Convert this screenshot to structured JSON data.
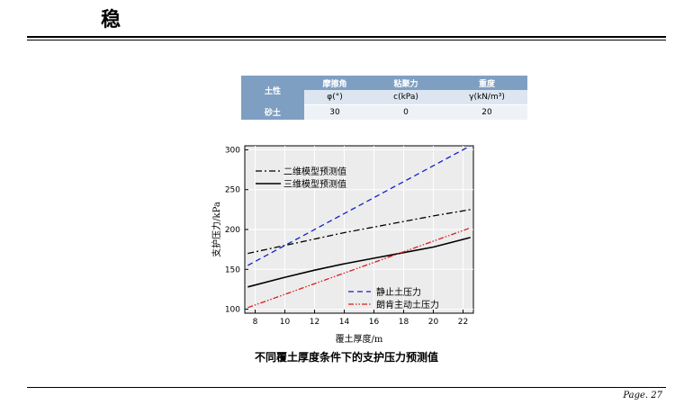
{
  "page": {
    "title": "稳",
    "caption": "不同覆土厚度条件下的支护压力预测值",
    "page_number": "Page. 27"
  },
  "soil_table": {
    "col_soil_header": "土性",
    "headers": [
      "摩擦角",
      "粘聚力",
      "重度"
    ],
    "units": [
      "φ(°)",
      "c(kPa)",
      "γ(kN/m³)"
    ],
    "row_label": "砂土",
    "values": [
      "30",
      "0",
      "20"
    ]
  },
  "chart_data": {
    "type": "line",
    "xlabel": "覆土厚度/m",
    "ylabel": "支护压力/kPa",
    "xlim": [
      7.3,
      22.7
    ],
    "ylim": [
      95,
      305
    ],
    "xticks": [
      8,
      10,
      12,
      14,
      16,
      18,
      20,
      22
    ],
    "yticks": [
      100,
      150,
      200,
      250,
      300
    ],
    "grid": true,
    "legend_top": [
      "二维模型预测值",
      "三维模型预测值"
    ],
    "legend_bottom": [
      "静止土压力",
      "朗肯主动土压力"
    ],
    "series": [
      {
        "name": "二维模型预测值",
        "style": "dashdot",
        "color": "#000000",
        "x": [
          7.5,
          10,
          12,
          14,
          16,
          18,
          20,
          22.5
        ],
        "y": [
          170,
          180,
          188,
          196,
          203,
          210,
          217,
          225
        ]
      },
      {
        "name": "三维模型预测值",
        "style": "solid",
        "color": "#000000",
        "x": [
          7.5,
          10,
          12,
          14,
          16,
          18,
          20,
          22.5
        ],
        "y": [
          128,
          140,
          149,
          157,
          164,
          171,
          178,
          190
        ]
      },
      {
        "name": "静止土压力",
        "style": "dash",
        "color": "#1020c8",
        "x": [
          7.5,
          22.5
        ],
        "y": [
          155,
          305
        ]
      },
      {
        "name": "朗肯主动土压力",
        "style": "dashdotdot",
        "color": "#d81c1c",
        "x": [
          7.5,
          22.5
        ],
        "y": [
          102,
          202
        ]
      }
    ]
  }
}
